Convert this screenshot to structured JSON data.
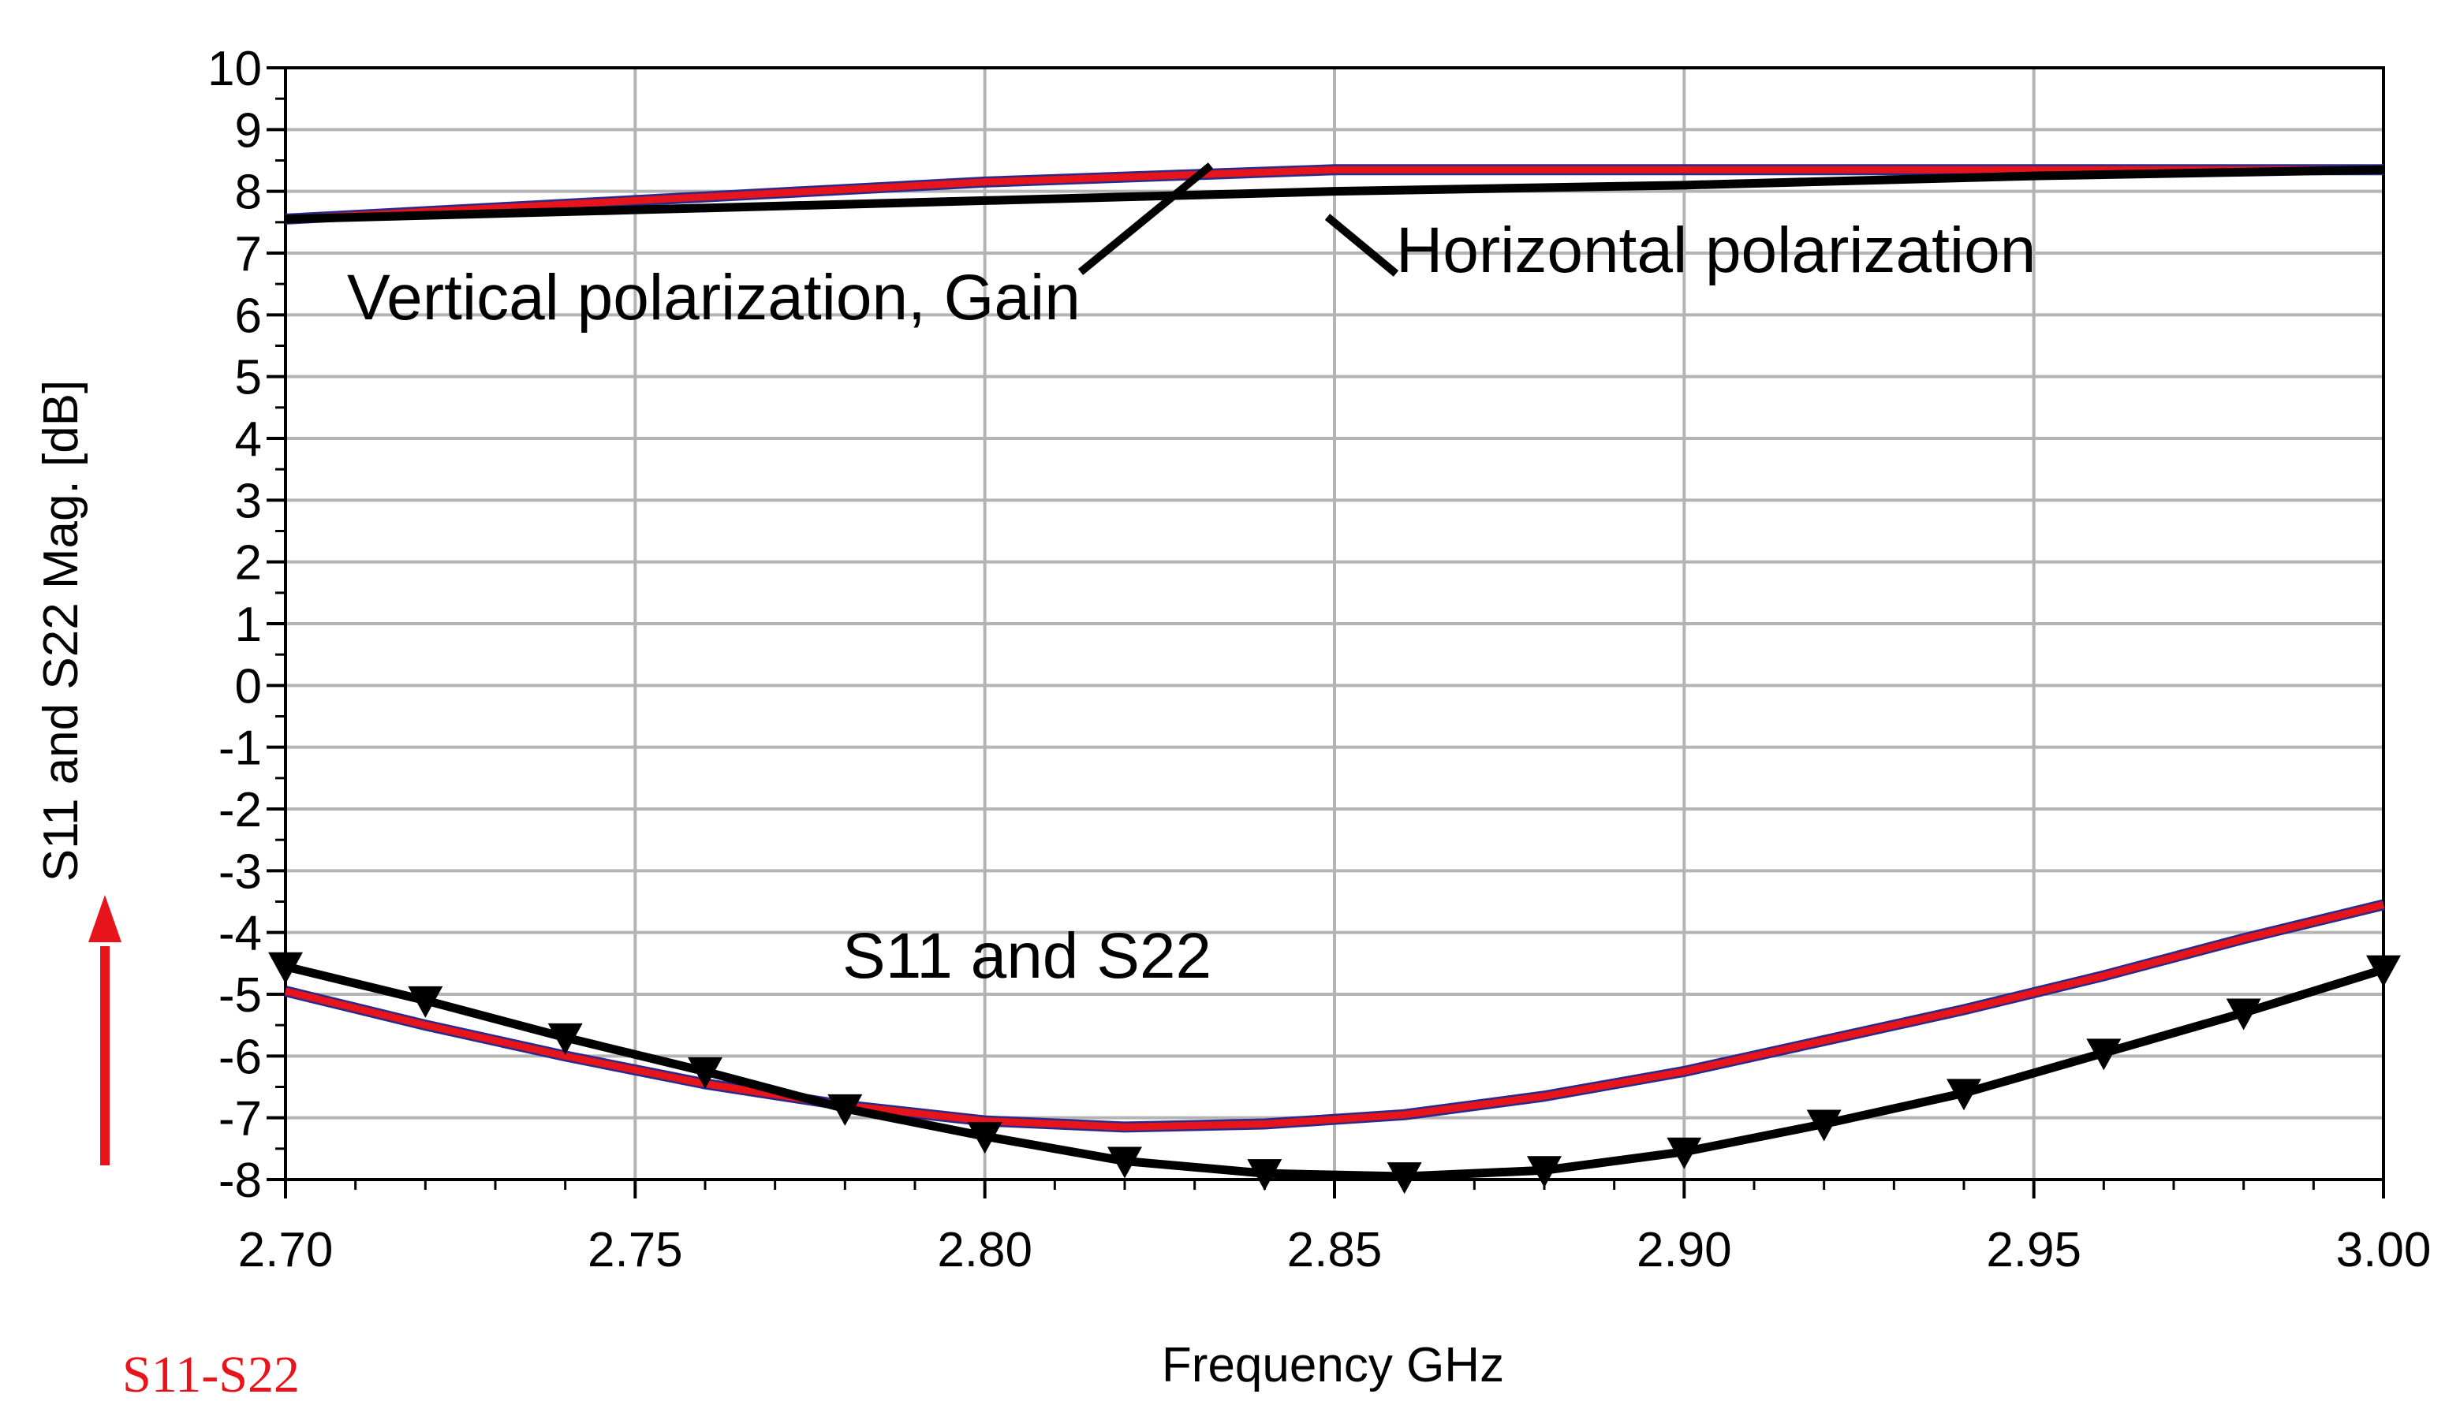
{
  "chart_data": {
    "type": "line",
    "xlabel": "Frequency GHz",
    "ylabel": "S11 and S22 Mag. [dB]",
    "xlim": [
      2.7,
      3.0
    ],
    "ylim": [
      -8,
      10
    ],
    "x_ticks": [
      2.7,
      2.75,
      2.8,
      2.85,
      2.9,
      2.95,
      3.0
    ],
    "x_tick_labels": [
      "2.70",
      "2.75",
      "2.80",
      "2.85",
      "2.90",
      "2.95",
      "3.00"
    ],
    "y_ticks": [
      10,
      9,
      8,
      7,
      6,
      5,
      4,
      3,
      2,
      1,
      0,
      -1,
      -2,
      -3,
      -4,
      -5,
      -6,
      -7,
      -8
    ],
    "y_tick_labels": [
      "10",
      "9",
      "8",
      "7",
      "6",
      "5",
      "4",
      "3",
      "2",
      "1",
      "0",
      "-1",
      "-2",
      "-3",
      "-4",
      "-5",
      "-6",
      "-7",
      "-8"
    ],
    "grid": true,
    "series": [
      {
        "name": "Vertical polarization, Gain",
        "color": "#e8141c",
        "marker": "none",
        "x": [
          2.7,
          2.75,
          2.8,
          2.85,
          2.9,
          2.95,
          3.0
        ],
        "values": [
          7.55,
          7.85,
          8.15,
          8.35,
          8.35,
          8.35,
          8.35
        ]
      },
      {
        "name": "Horizontal polarization",
        "color": "#000000",
        "marker": "none",
        "x": [
          2.7,
          2.75,
          2.8,
          2.85,
          2.9,
          2.95,
          3.0
        ],
        "values": [
          7.55,
          7.7,
          7.85,
          8.0,
          8.1,
          8.25,
          8.35
        ]
      },
      {
        "name": "S11",
        "color": "#e8141c",
        "marker": "none",
        "x": [
          2.7,
          2.72,
          2.74,
          2.76,
          2.78,
          2.8,
          2.82,
          2.84,
          2.86,
          2.88,
          2.9,
          2.92,
          2.94,
          2.96,
          2.98,
          3.0
        ],
        "values": [
          -4.95,
          -5.5,
          -6.0,
          -6.45,
          -6.8,
          -7.05,
          -7.15,
          -7.1,
          -6.95,
          -6.65,
          -6.25,
          -5.75,
          -5.25,
          -4.7,
          -4.1,
          -3.55
        ]
      },
      {
        "name": "S22",
        "color": "#000000",
        "marker": "triangle-down",
        "x": [
          2.7,
          2.72,
          2.74,
          2.76,
          2.78,
          2.8,
          2.82,
          2.84,
          2.86,
          2.88,
          2.9,
          2.92,
          2.94,
          2.96,
          2.98,
          3.0
        ],
        "values": [
          -4.55,
          -5.1,
          -5.7,
          -6.25,
          -6.85,
          -7.3,
          -7.7,
          -7.9,
          -7.95,
          -7.85,
          -7.55,
          -7.1,
          -6.6,
          -5.95,
          -5.3,
          -4.6
        ]
      }
    ],
    "annotations": [
      {
        "text": "Vertical polarization, Gain"
      },
      {
        "text": "Horizontal polarization"
      },
      {
        "text": "S11 and S22"
      }
    ],
    "caption": "S11-S22"
  }
}
